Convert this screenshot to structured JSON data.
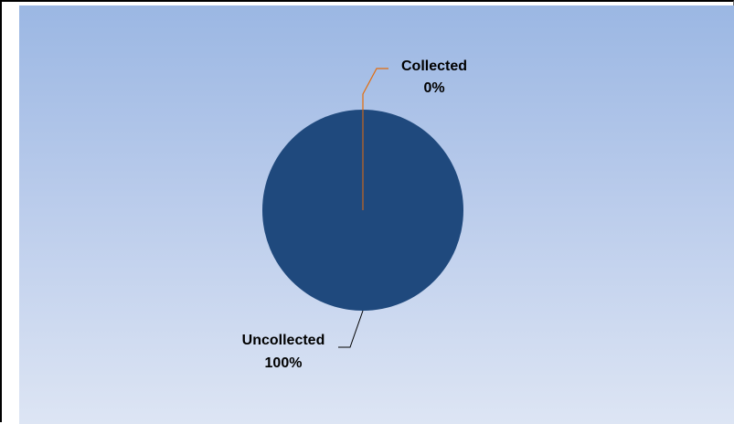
{
  "chart_data": {
    "type": "pie",
    "categories": [
      "Collected",
      "Uncollected"
    ],
    "values": [
      0,
      100
    ],
    "percent_labels": [
      "0%",
      "100%"
    ],
    "colors": [
      "#e46c0a",
      "#1f497d"
    ],
    "title": "",
    "legend": "none"
  }
}
